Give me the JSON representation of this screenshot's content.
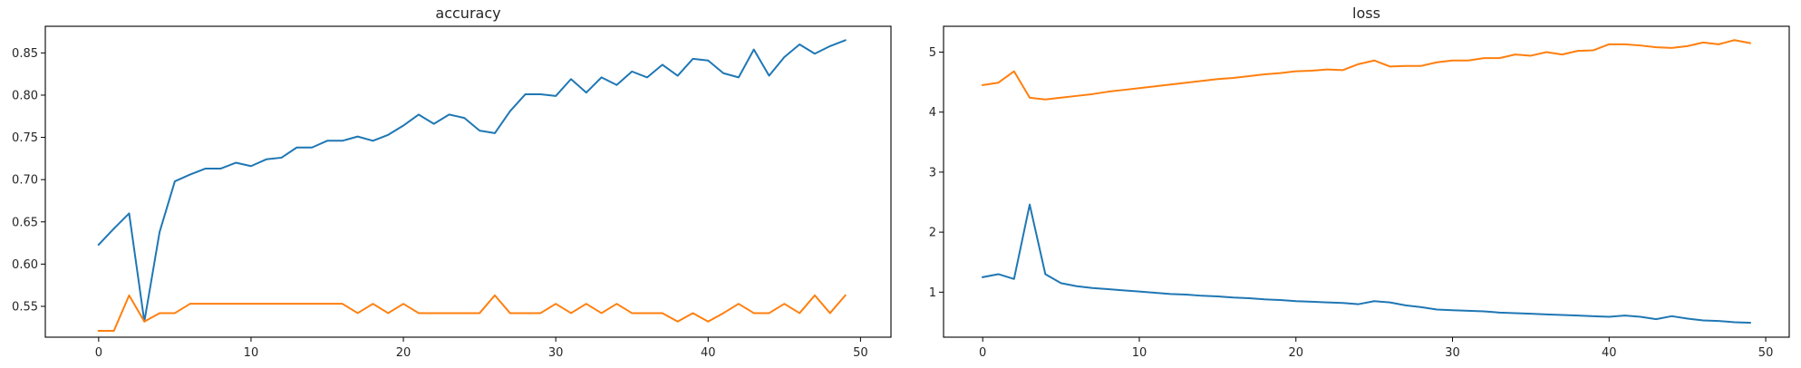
{
  "chart_data": [
    {
      "type": "line",
      "title": "accuracy",
      "xlabel": "",
      "ylabel": "",
      "xlim": [
        -3.5,
        52
      ],
      "ylim": [
        0.5135,
        0.8815
      ],
      "xticks": [
        0,
        10,
        20,
        30,
        40,
        50
      ],
      "yticks": [
        0.55,
        0.6,
        0.65,
        0.7,
        0.75,
        0.8,
        0.85
      ],
      "ytick_labels": [
        "0.55",
        "0.60",
        "0.65",
        "0.70",
        "0.75",
        "0.80",
        "0.85"
      ],
      "grid": false,
      "legend": "none",
      "series": [
        {
          "color": "#1f77b4",
          "x": [
            0,
            1,
            2,
            3,
            4,
            5,
            6,
            7,
            8,
            9,
            10,
            11,
            12,
            13,
            14,
            15,
            16,
            17,
            18,
            19,
            20,
            21,
            22,
            23,
            24,
            25,
            26,
            27,
            28,
            29,
            30,
            31,
            32,
            33,
            34,
            35,
            36,
            37,
            38,
            39,
            40,
            41,
            42,
            43,
            44,
            45,
            46,
            47,
            48,
            49
          ],
          "values": [
            0.623,
            0.642,
            0.66,
            0.532,
            0.638,
            0.698,
            0.706,
            0.713,
            0.713,
            0.72,
            0.716,
            0.724,
            0.726,
            0.738,
            0.738,
            0.746,
            0.746,
            0.751,
            0.746,
            0.753,
            0.764,
            0.777,
            0.766,
            0.777,
            0.773,
            0.758,
            0.755,
            0.781,
            0.801,
            0.801,
            0.799,
            0.819,
            0.803,
            0.821,
            0.812,
            0.828,
            0.821,
            0.836,
            0.823,
            0.843,
            0.841,
            0.826,
            0.821,
            0.854,
            0.823,
            0.845,
            0.86,
            0.849,
            0.858,
            0.865
          ]
        },
        {
          "color": "#ff7f0e",
          "x": [
            0,
            1,
            2,
            3,
            4,
            5,
            6,
            7,
            8,
            9,
            10,
            11,
            12,
            13,
            14,
            15,
            16,
            17,
            18,
            19,
            20,
            21,
            22,
            23,
            24,
            25,
            26,
            27,
            28,
            29,
            30,
            31,
            32,
            33,
            34,
            35,
            36,
            37,
            38,
            39,
            40,
            41,
            42,
            43,
            44,
            45,
            46,
            47,
            48,
            49
          ],
          "values": [
            0.521,
            0.521,
            0.563,
            0.532,
            0.542,
            0.542,
            0.553,
            0.553,
            0.553,
            0.553,
            0.553,
            0.553,
            0.553,
            0.553,
            0.553,
            0.553,
            0.553,
            0.542,
            0.553,
            0.542,
            0.553,
            0.542,
            0.542,
            0.542,
            0.542,
            0.542,
            0.563,
            0.542,
            0.542,
            0.542,
            0.553,
            0.542,
            0.553,
            0.542,
            0.553,
            0.542,
            0.542,
            0.542,
            0.532,
            0.542,
            0.532,
            0.542,
            0.553,
            0.542,
            0.542,
            0.553,
            0.542,
            0.563,
            0.542,
            0.563
          ]
        }
      ]
    },
    {
      "type": "line",
      "title": "loss",
      "xlabel": "",
      "ylabel": "",
      "xlim": [
        -2.5,
        51.5
      ],
      "ylim": [
        0.25,
        5.43
      ],
      "xticks": [
        0,
        10,
        20,
        30,
        40,
        50
      ],
      "yticks": [
        1,
        2,
        3,
        4,
        5
      ],
      "ytick_labels": [
        "1",
        "2",
        "3",
        "4",
        "5"
      ],
      "grid": false,
      "legend": "none",
      "series": [
        {
          "color": "#1f77b4",
          "x": [
            0,
            1,
            2,
            3,
            4,
            5,
            6,
            7,
            8,
            9,
            10,
            11,
            12,
            13,
            14,
            15,
            16,
            17,
            18,
            19,
            20,
            21,
            22,
            23,
            24,
            25,
            26,
            27,
            28,
            29,
            30,
            31,
            32,
            33,
            34,
            35,
            36,
            37,
            38,
            39,
            40,
            41,
            42,
            43,
            44,
            45,
            46,
            47,
            48,
            49
          ],
          "values": [
            1.25,
            1.3,
            1.22,
            2.46,
            1.3,
            1.15,
            1.1,
            1.07,
            1.05,
            1.03,
            1.01,
            0.99,
            0.97,
            0.96,
            0.94,
            0.93,
            0.91,
            0.9,
            0.88,
            0.87,
            0.85,
            0.84,
            0.83,
            0.82,
            0.8,
            0.85,
            0.83,
            0.78,
            0.75,
            0.71,
            0.7,
            0.69,
            0.68,
            0.66,
            0.65,
            0.64,
            0.63,
            0.62,
            0.61,
            0.6,
            0.59,
            0.61,
            0.59,
            0.55,
            0.6,
            0.56,
            0.53,
            0.52,
            0.5,
            0.49
          ]
        },
        {
          "color": "#ff7f0e",
          "x": [
            0,
            1,
            2,
            3,
            4,
            5,
            6,
            7,
            8,
            9,
            10,
            11,
            12,
            13,
            14,
            15,
            16,
            17,
            18,
            19,
            20,
            21,
            22,
            23,
            24,
            25,
            26,
            27,
            28,
            29,
            30,
            31,
            32,
            33,
            34,
            35,
            36,
            37,
            38,
            39,
            40,
            41,
            42,
            43,
            44,
            45,
            46,
            47,
            48,
            49
          ],
          "values": [
            4.45,
            4.49,
            4.68,
            4.24,
            4.21,
            4.24,
            4.27,
            4.3,
            4.34,
            4.37,
            4.4,
            4.43,
            4.46,
            4.49,
            4.52,
            4.55,
            4.57,
            4.6,
            4.63,
            4.65,
            4.68,
            4.69,
            4.71,
            4.7,
            4.8,
            4.86,
            4.76,
            4.77,
            4.77,
            4.83,
            4.86,
            4.86,
            4.9,
            4.9,
            4.96,
            4.94,
            5.0,
            4.96,
            5.02,
            5.03,
            5.13,
            5.13,
            5.11,
            5.08,
            5.07,
            5.1,
            5.16,
            5.13,
            5.2,
            5.15
          ]
        }
      ]
    }
  ]
}
